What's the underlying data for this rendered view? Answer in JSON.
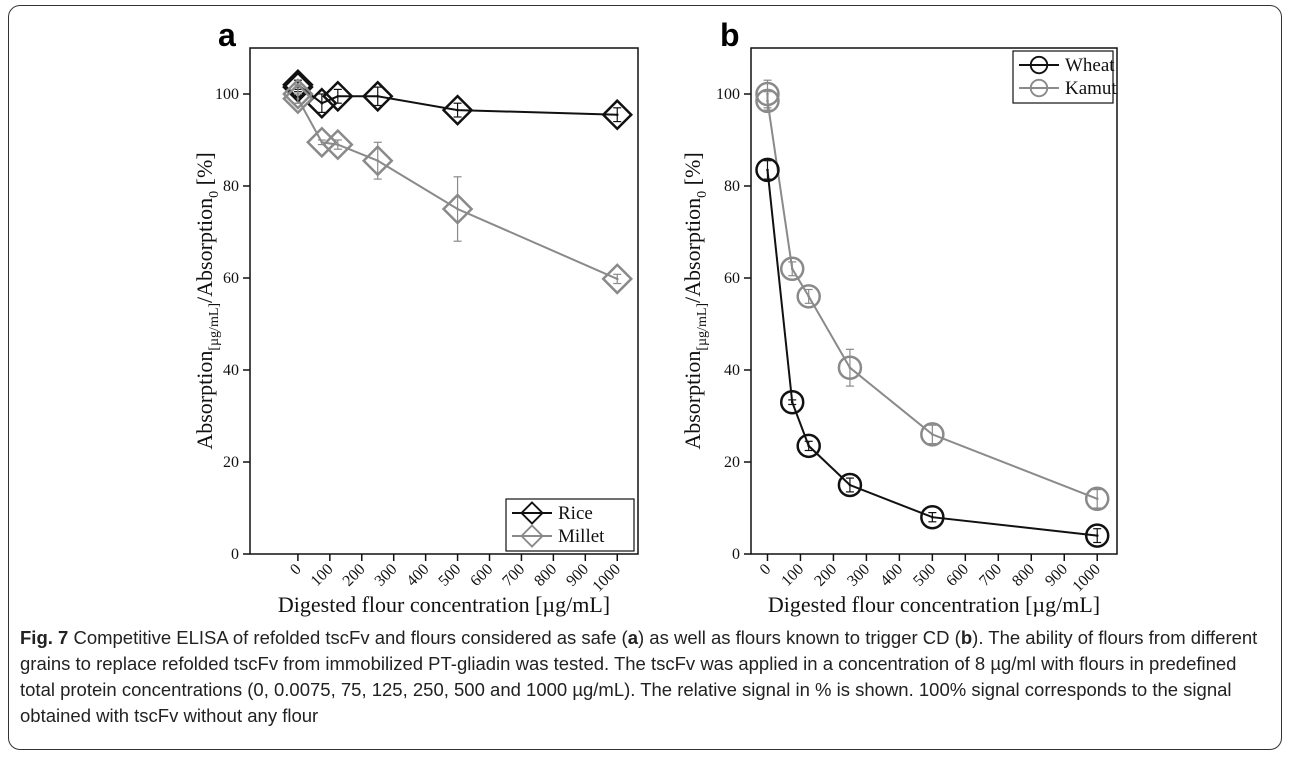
{
  "chart_data": [
    {
      "type": "line",
      "panel": "a",
      "x_axis_label": "Digested flour concentration [µg/mL]",
      "y_axis_label": [
        {
          "text": "Absorption"
        },
        {
          "text": "[µg/mL]",
          "sub": true
        },
        {
          "text": "/Absorption"
        },
        {
          "text": "0",
          "sub": true
        },
        {
          "text": " [%]"
        }
      ],
      "xlim": [
        -150,
        1065
      ],
      "ylim": [
        0,
        110
      ],
      "xticks": [
        0,
        100,
        200,
        300,
        400,
        500,
        600,
        700,
        800,
        900,
        1000
      ],
      "yticks": [
        0,
        20,
        40,
        60,
        80,
        100
      ],
      "marker": "diamond",
      "legend": "lower right",
      "series": [
        {
          "name": "Rice",
          "color": "#111111",
          "x": [
            0,
            0.0075,
            75,
            125,
            250,
            500,
            1000
          ],
          "values": [
            101.5,
            102,
            98,
            99.5,
            99.5,
            96.5,
            95.5
          ],
          "errors": [
            1,
            1,
            2,
            1.5,
            2,
            1.5,
            1.5
          ]
        },
        {
          "name": "Millet",
          "color": "#8a8a8a",
          "x": [
            0,
            0.0075,
            75,
            125,
            250,
            500,
            1000
          ],
          "values": [
            100,
            99,
            89.5,
            89,
            85.5,
            75,
            59.8
          ],
          "errors": [
            2,
            1,
            0.5,
            1,
            4,
            7,
            1
          ]
        }
      ]
    },
    {
      "type": "line",
      "panel": "b",
      "x_axis_label": "Digested flour concentration [µg/mL]",
      "y_axis_label": [
        {
          "text": "Absorption"
        },
        {
          "text": "[µg/mL]",
          "sub": true
        },
        {
          "text": "/Absorption"
        },
        {
          "text": "0",
          "sub": true
        },
        {
          "text": " [%]"
        }
      ],
      "xlim": [
        -50,
        1060
      ],
      "ylim": [
        0,
        110
      ],
      "xticks": [
        0,
        100,
        200,
        300,
        400,
        500,
        600,
        700,
        800,
        900,
        1000
      ],
      "yticks": [
        0,
        20,
        40,
        60,
        80,
        100
      ],
      "marker": "circle",
      "legend": "upper right",
      "series": [
        {
          "name": "Wheat",
          "color": "#111111",
          "x": [
            0,
            75,
            125,
            250,
            500,
            1000
          ],
          "values": [
            83.5,
            33,
            23.5,
            15,
            8,
            4
          ],
          "errors": [
            2,
            0.5,
            1,
            1.5,
            1,
            1.5
          ]
        },
        {
          "name": "Kamut",
          "color": "#8a8a8a",
          "x": [
            0,
            0.0075,
            75,
            125,
            250,
            500,
            1000
          ],
          "values": [
            100,
            98.5,
            62,
            56,
            40.5,
            26,
            12
          ],
          "errors": [
            3,
            2,
            1.5,
            1.5,
            4,
            2,
            2
          ]
        }
      ]
    }
  ],
  "caption": {
    "label": "Fig. 7",
    "segments": [
      {
        "text": " Competitive ELISA of refolded tscFv and flours considered as safe ("
      },
      {
        "text": "a",
        "bold": true
      },
      {
        "text": ") as well as flours known to trigger CD ("
      },
      {
        "text": "b",
        "bold": true
      },
      {
        "text": "). The ability of flours from different grains to replace refolded tscFv from immobilized PT-gliadin was tested. The tscFv was applied in a concentration of 8 µg/ml with flours in predefined total protein concentrations (0, 0.0075, 75, 125, 250, 500 and 1000 µg/mL). The relative signal in % is shown. 100% signal corresponds to the signal obtained with tscFv without any flour"
      }
    ]
  }
}
